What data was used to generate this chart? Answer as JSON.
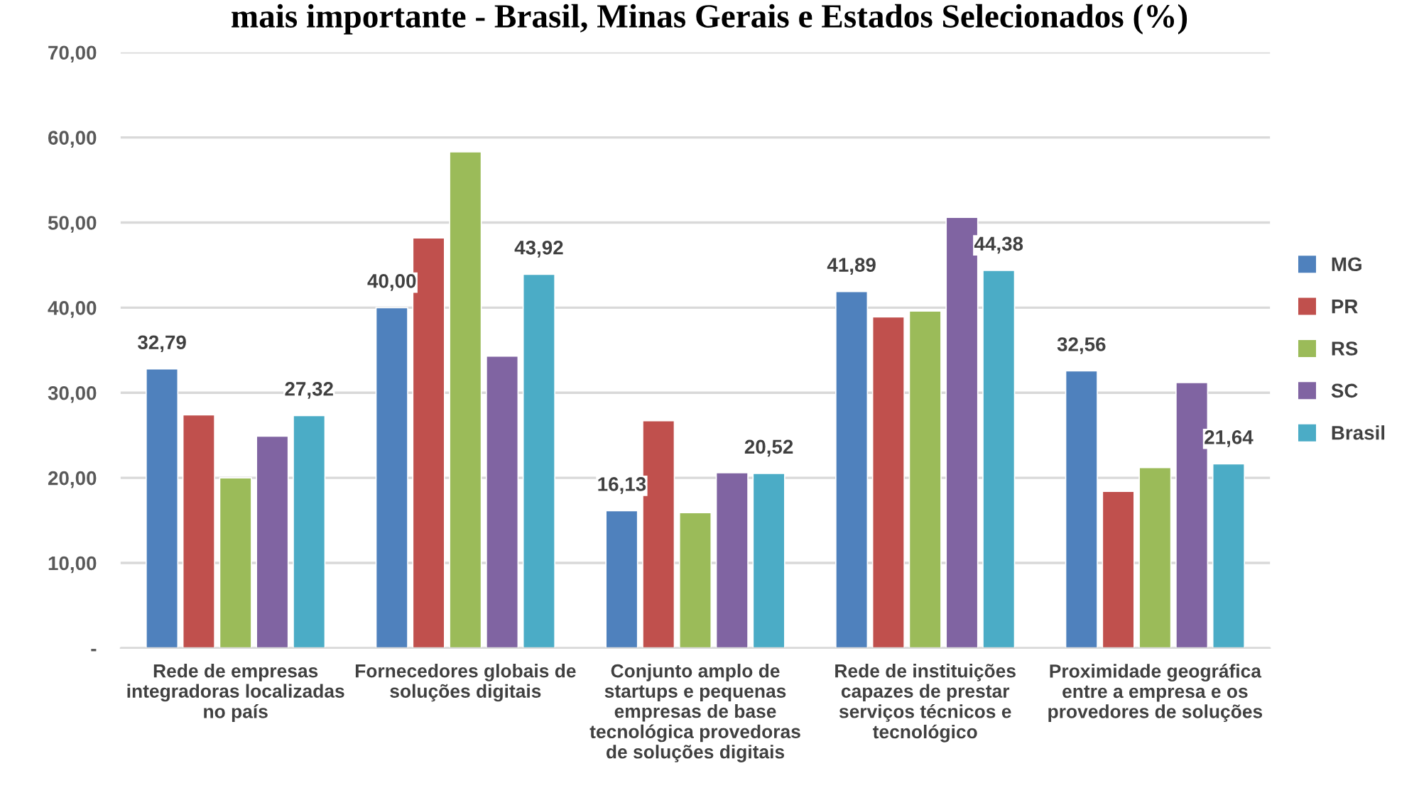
{
  "chart_data": {
    "type": "bar",
    "title": "mais importante - Brasil, Minas Gerais e Estados Selecionados (%)",
    "categories": [
      "Rede de empresas\nintegradoras localizadas\nno país",
      "Fornecedores globais de\nsoluções digitais",
      "Conjunto amplo de\nstartups e pequenas\nempresas de base\ntecnológica provedoras\nde soluções digitais",
      "Rede de instituições\ncapazes de prestar\nserviços técnicos e\ntecnológico",
      "Proximidade geográfica\nentre a empresa e os\nprovedores de soluções"
    ],
    "series": [
      {
        "name": "MG",
        "color": "#4f81bd",
        "values": [
          32.79,
          40.0,
          16.13,
          41.89,
          32.56
        ],
        "value_labels": [
          "32,79",
          "40,00",
          "16,13",
          "41,89",
          "32,56"
        ]
      },
      {
        "name": "PR",
        "color": "#c0504d",
        "values": [
          27.4,
          48.2,
          26.7,
          38.9,
          18.4
        ]
      },
      {
        "name": "RS",
        "color": "#9bbb59",
        "values": [
          20.0,
          58.3,
          15.9,
          39.6,
          21.2
        ]
      },
      {
        "name": "SC",
        "color": "#8064a2",
        "values": [
          24.9,
          34.3,
          20.6,
          50.6,
          31.2
        ]
      },
      {
        "name": "Brasil",
        "color": "#4bacc6",
        "values": [
          27.32,
          43.92,
          20.52,
          44.38,
          21.64
        ],
        "value_labels": [
          "27,32",
          "43,92",
          "20,52",
          "44,38",
          "21,64"
        ]
      }
    ],
    "ylim": [
      0,
      70
    ],
    "yticks": [
      {
        "value": 0,
        "label": "-"
      },
      {
        "value": 10,
        "label": "10,00"
      },
      {
        "value": 20,
        "label": "20,00"
      },
      {
        "value": 30,
        "label": "30,00"
      },
      {
        "value": 40,
        "label": "40,00"
      },
      {
        "value": 50,
        "label": "50,00"
      },
      {
        "value": 60,
        "label": "60,00"
      },
      {
        "value": 70,
        "label": "70,00"
      }
    ],
    "grid": "y",
    "legend": "right"
  }
}
